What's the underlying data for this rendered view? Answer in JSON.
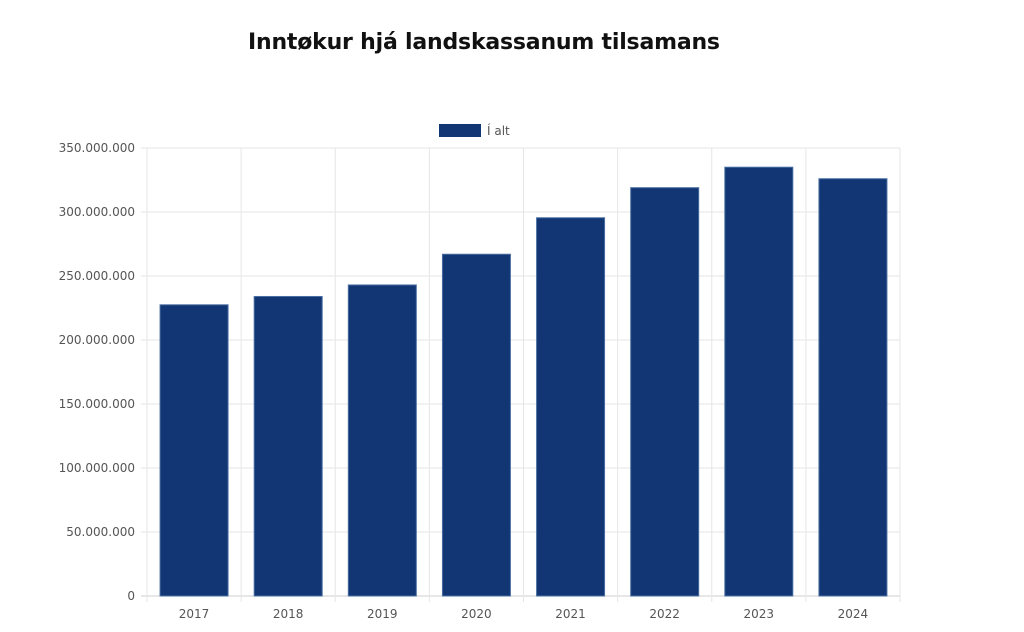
{
  "chart_data": {
    "type": "bar",
    "title": "Inntøkur hjá landskassanum tilsamans",
    "categories": [
      "2017",
      "2018",
      "2019",
      "2020",
      "2021",
      "2022",
      "2023",
      "2024"
    ],
    "series": [
      {
        "name": "Í alt",
        "color": "#123673",
        "values": [
          227500000,
          234000000,
          243000000,
          267000000,
          295500000,
          319000000,
          335000000,
          326000000
        ]
      }
    ],
    "yticks": [
      0,
      50000000,
      100000000,
      150000000,
      200000000,
      250000000,
      300000000,
      350000000
    ],
    "ytick_labels": [
      "0",
      "50.000.000",
      "100.000.000",
      "150.000.000",
      "200.000.000",
      "250.000.000",
      "300.000.000",
      "350.000.000"
    ],
    "ylim": [
      0,
      350000000
    ],
    "xlabel": "",
    "ylabel": "",
    "legend_position": "top-center",
    "grid": true
  }
}
